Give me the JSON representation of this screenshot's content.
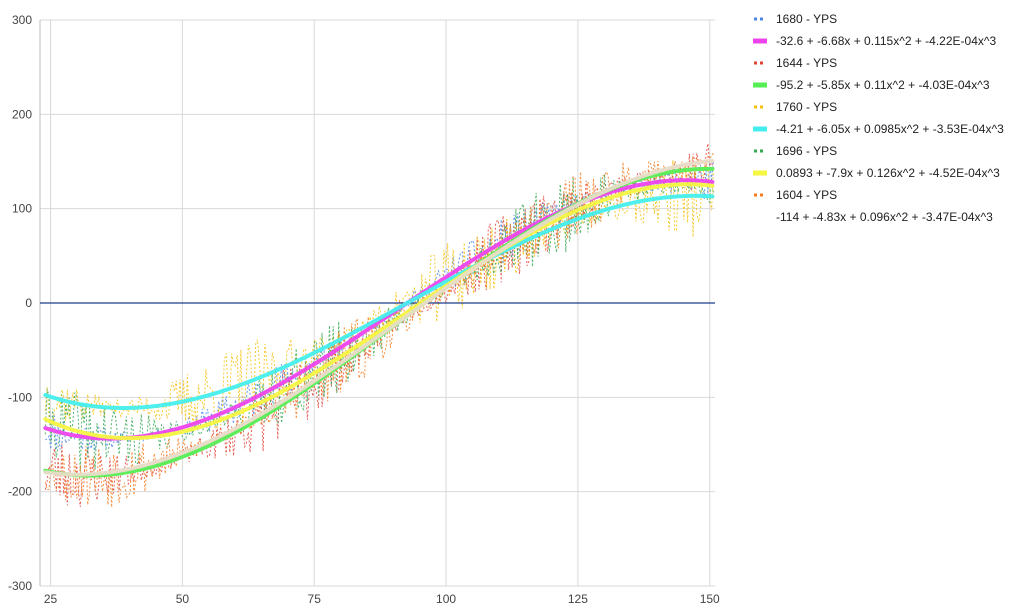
{
  "chart_data": {
    "type": "line",
    "title": "",
    "xlabel": "",
    "ylabel": "",
    "xlim": [
      23,
      151
    ],
    "ylim": [
      -300,
      300
    ],
    "x_ticks": [
      25,
      50,
      75,
      100,
      125,
      150
    ],
    "y_ticks": [
      -300,
      -200,
      -100,
      0,
      100,
      200,
      300
    ],
    "grid": true,
    "legend_position": "right",
    "series": [
      {
        "name": "1680 - YPS",
        "style": "dotted",
        "color": "#4a86e8",
        "coeffs": [
          -32.6,
          -6.68,
          0.115,
          -0.000422
        ],
        "noise": 25,
        "seed": 11
      },
      {
        "name": "1644 - YPS",
        "style": "dotted",
        "color": "#e04438",
        "coeffs": [
          -95.2,
          -5.85,
          0.11,
          -0.000403
        ],
        "noise": 40,
        "seed": 23
      },
      {
        "name": "1760 - YPS",
        "style": "dotted",
        "color": "#f4c20d",
        "coeffs": [
          -4.21,
          -6.05,
          0.0985,
          -0.000353
        ],
        "noise": 45,
        "seed": 37
      },
      {
        "name": "1696 - YPS",
        "style": "dotted",
        "color": "#33a852",
        "coeffs": [
          0.0893,
          -7.9,
          0.126,
          -0.000452
        ],
        "noise": 42,
        "seed": 41
      },
      {
        "name": "1604 - YPS",
        "style": "dotted",
        "color": "#f57c1f",
        "coeffs": [
          -114,
          -4.83,
          0.096,
          -0.000347
        ],
        "noise": 38,
        "seed": 53
      }
    ],
    "baseline": {
      "color": "#1a3d8f",
      "y": 0
    },
    "trendlines": [
      {
        "label": "-32.6 + -6.68x + 0.115x^2 + -4.22E-04x^3",
        "color": "#ee44ee",
        "coeffs": [
          -32.6,
          -6.68,
          0.115,
          -0.000422
        ]
      },
      {
        "label": "-95.2 + -5.85x + 0.11x^2 + -4.03E-04x^3",
        "color": "#55ee55",
        "coeffs": [
          -95.2,
          -5.85,
          0.11,
          -0.000403
        ]
      },
      {
        "label": "-4.21 + -6.05x + 0.0985x^2 + -3.53E-04x^3",
        "color": "#44eeee",
        "coeffs": [
          -4.21,
          -6.05,
          0.0985,
          -0.000353
        ]
      },
      {
        "label": "0.0893 + -7.9x + 0.126x^2 + -4.52E-04x^3",
        "color": "#f5f542",
        "coeffs": [
          0.0893,
          -7.9,
          0.126,
          -0.000452
        ]
      },
      {
        "label": "-114 + -4.83x + 0.096x^2 + -3.47E-04x^3",
        "color": "#e8dcc8",
        "coeffs": [
          -114,
          -4.83,
          0.096,
          -0.000347
        ]
      }
    ],
    "legend": [
      {
        "label": "1680 - YPS",
        "color": "#4a86e8",
        "style": "dotted"
      },
      {
        "label": "-32.6 + -6.68x + 0.115x^2 + -4.22E-04x^3",
        "color": "#ee44ee",
        "style": "solid"
      },
      {
        "label": "1644 - YPS",
        "color": "#e04438",
        "style": "dotted"
      },
      {
        "label": "-95.2 + -5.85x + 0.11x^2 + -4.03E-04x^3",
        "color": "#55ee55",
        "style": "solid"
      },
      {
        "label": "1760 - YPS",
        "color": "#f4c20d",
        "style": "dotted"
      },
      {
        "label": "-4.21 + -6.05x + 0.0985x^2 + -3.53E-04x^3",
        "color": "#44eeee",
        "style": "solid"
      },
      {
        "label": "1696 - YPS",
        "color": "#33a852",
        "style": "dotted"
      },
      {
        "label": "0.0893 + -7.9x + 0.126x^2 + -4.52E-04x^3",
        "color": "#f5f542",
        "style": "solid"
      },
      {
        "label": "1604 - YPS",
        "color": "#f57c1f",
        "style": "dotted"
      },
      {
        "label": "-114 + -4.83x + 0.096x^2 + -3.47E-04x^3",
        "color": "#e8dcc8",
        "style": "none"
      }
    ]
  }
}
